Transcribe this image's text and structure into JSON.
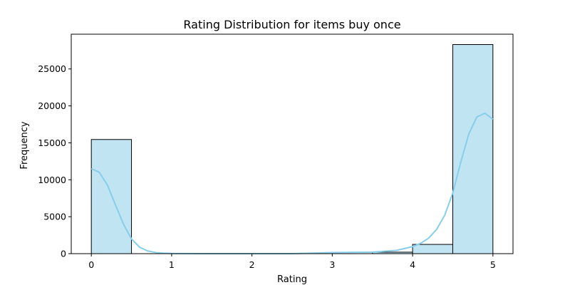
{
  "chart_data": {
    "type": "bar",
    "title": "Rating Distribution for items buy once",
    "xlabel": "Rating",
    "ylabel": "Frequency",
    "xlim": [
      -0.25,
      5.25
    ],
    "ylim": [
      0,
      29700
    ],
    "xticks": [
      0,
      1,
      2,
      3,
      4,
      5
    ],
    "yticks": [
      0,
      5000,
      10000,
      15000,
      20000,
      25000
    ],
    "bins": [
      {
        "x0": 0.0,
        "x1": 0.5,
        "value": 15450
      },
      {
        "x0": 0.5,
        "x1": 1.0,
        "value": 0
      },
      {
        "x0": 1.0,
        "x1": 1.5,
        "value": 0
      },
      {
        "x0": 1.5,
        "x1": 2.0,
        "value": 0
      },
      {
        "x0": 2.0,
        "x1": 2.5,
        "value": 0
      },
      {
        "x0": 2.5,
        "x1": 3.0,
        "value": 0
      },
      {
        "x0": 3.0,
        "x1": 3.5,
        "value": 0
      },
      {
        "x0": 3.5,
        "x1": 4.0,
        "value": 200
      },
      {
        "x0": 4.0,
        "x1": 4.5,
        "value": 1250
      },
      {
        "x0": 4.5,
        "x1": 5.0,
        "value": 28300
      }
    ],
    "kde": {
      "x": [
        0.0,
        0.1,
        0.2,
        0.3,
        0.4,
        0.5,
        0.6,
        0.7,
        0.8,
        0.9,
        1.0,
        1.5,
        2.0,
        2.5,
        3.0,
        3.5,
        3.8,
        4.0,
        4.1,
        4.2,
        4.3,
        4.4,
        4.5,
        4.6,
        4.7,
        4.8,
        4.9,
        5.0
      ],
      "y": [
        11500,
        11000,
        9300,
        6600,
        4000,
        2000,
        880,
        370,
        150,
        60,
        20,
        0,
        0,
        0,
        150,
        200,
        450,
        950,
        1400,
        2100,
        3300,
        5200,
        8200,
        12400,
        16200,
        18500,
        19000,
        18200
      ]
    },
    "grid": false,
    "legend": "none",
    "colors": {
      "bar_fill": "#c1e4f3",
      "bar_edge": "#000000",
      "kde_line": "#87ceeb",
      "axis": "#000000"
    }
  }
}
